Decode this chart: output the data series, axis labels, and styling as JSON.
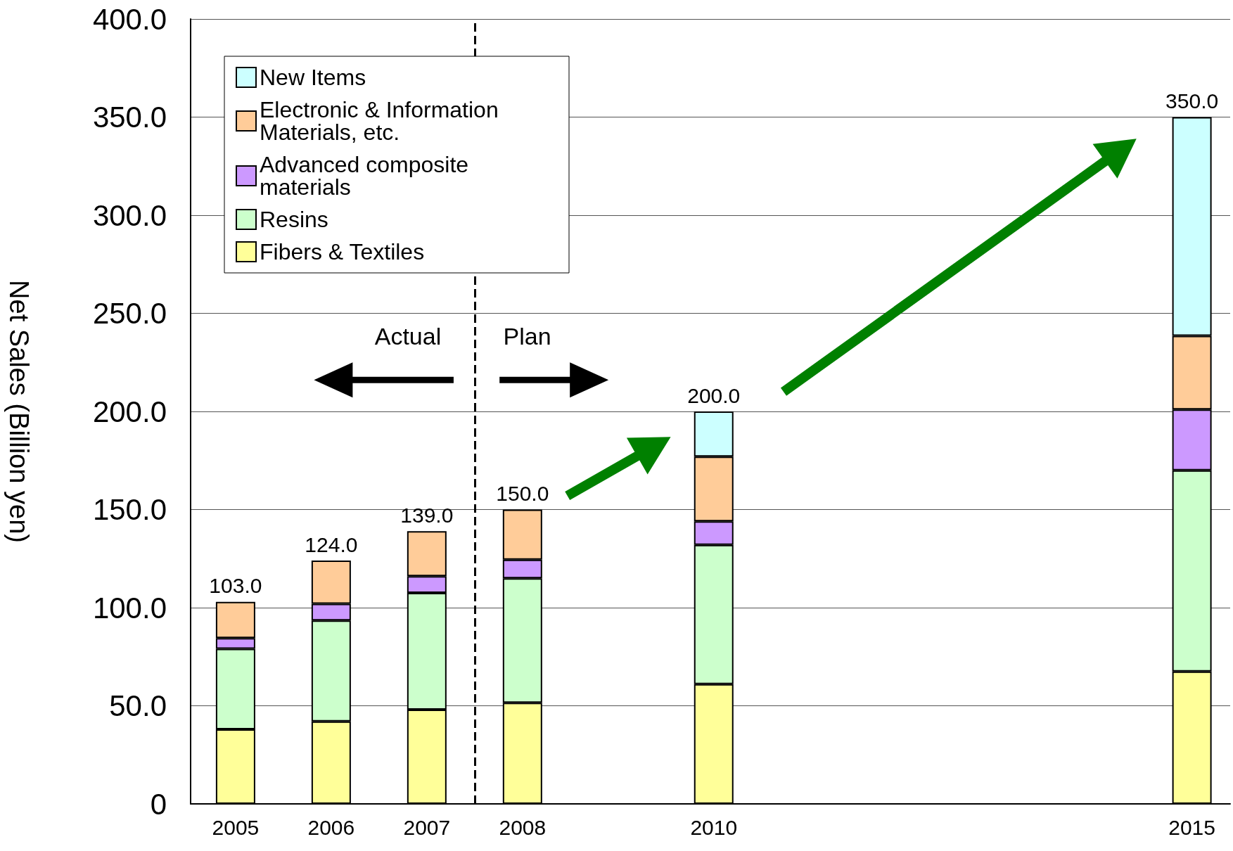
{
  "chart_data": {
    "type": "bar",
    "stacked": true,
    "ylabel": "Net Sales (Billion yen)",
    "x": [
      2005,
      2006,
      2007,
      2008,
      2010,
      2015
    ],
    "xlim": [
      2004.53,
      2015.4
    ],
    "xticks": [
      2005,
      2006,
      2007,
      2008,
      2010,
      2015
    ],
    "ylim": [
      0,
      400
    ],
    "yticks": [
      {
        "value": 0,
        "label": "0"
      },
      {
        "value": 50,
        "label": "50.0"
      },
      {
        "value": 100,
        "label": "100.0"
      },
      {
        "value": 150,
        "label": "150.0"
      },
      {
        "value": 200,
        "label": "200.0"
      },
      {
        "value": 250,
        "label": "250.0"
      },
      {
        "value": 300,
        "label": "300.0"
      },
      {
        "value": 350,
        "label": "350.0"
      },
      {
        "value": 400,
        "label": "400.0"
      }
    ],
    "series": [
      {
        "name": "Fibers & Textiles",
        "color": "#ffff99",
        "values": [
          38,
          42,
          48,
          51.5,
          61,
          67.5
        ]
      },
      {
        "name": "Resins",
        "color": "#ccffcc",
        "values": [
          41,
          51.5,
          59.5,
          63.5,
          71,
          102.5
        ]
      },
      {
        "name": "Advanced composite materials",
        "color": "#cc99ff",
        "values": [
          5.5,
          8.5,
          8.5,
          9.5,
          12,
          31
        ]
      },
      {
        "name": "Electronic & Information Materials, etc.",
        "color": "#ffcc99",
        "values": [
          18.5,
          22,
          23,
          25.5,
          33,
          37.5
        ]
      },
      {
        "name": "New Items",
        "color": "#ccffff",
        "values": [
          null,
          null,
          null,
          null,
          23,
          111.5
        ]
      }
    ],
    "totals": [
      "103.0",
      "124.0",
      "139.0",
      "150.0",
      "200.0",
      "350.0"
    ],
    "ref_lines": [
      {
        "axis": "x",
        "value": 2007.5,
        "color": "#000000",
        "line_style": "dashed"
      }
    ],
    "annotations": [
      "Actual",
      "Plan"
    ],
    "grid": "y",
    "legend": "top left"
  }
}
